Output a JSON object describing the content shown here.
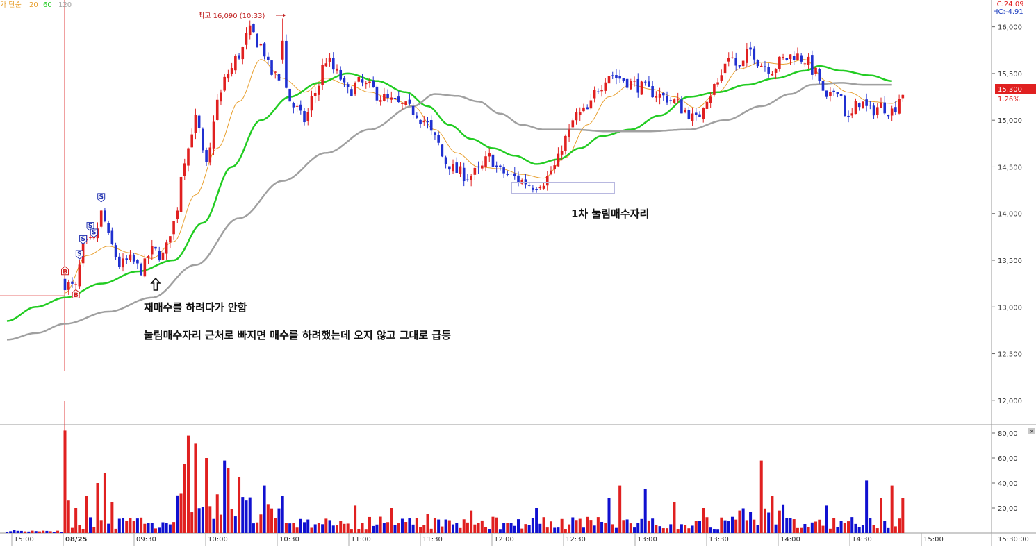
{
  "legend": {
    "prefix": "가 단순",
    "items": [
      {
        "label": "20",
        "color": "#e8a030"
      },
      {
        "label": "60",
        "color": "#22cc22"
      },
      {
        "label": "120",
        "color": "#a0a0a0"
      }
    ]
  },
  "top_right": {
    "lc": "LC:24.09",
    "hc": "HC:-4.91"
  },
  "price_box": {
    "price": "15,300",
    "pct": "1.26%",
    "color": "#e02020"
  },
  "annotations": {
    "high": "최고 16,090 (10:33)",
    "first_pullback": "1차 눌림매수자리",
    "rebuy": "재매수를 하려다가 안함",
    "note": "눌림매수자리 근처로 빠지면 매수를 하려했는데 오지 않고 그대로 급등"
  },
  "chart_data": [
    {
      "type": "candlestick",
      "title": "",
      "ylim": [
        11850,
        16250
      ],
      "y_ticks": [
        "12,000",
        "12,500",
        "13,000",
        "13,500",
        "14,000",
        "14,500",
        "15,000",
        "15,500",
        "16,000"
      ],
      "y_tick_values": [
        12000,
        12500,
        13000,
        13500,
        14000,
        14500,
        15000,
        15500,
        16000
      ],
      "x_ticks": [
        "15:00",
        "08/25",
        "09:30",
        "10:00",
        "10:30",
        "11:00",
        "11:30",
        "12:00",
        "12:30",
        "13:00",
        "13:30",
        "14:00",
        "14:30",
        "15:00",
        "15:30:00"
      ],
      "previous_close": 13120,
      "high": 16090,
      "up_color": "#e02020",
      "down_color": "#2030d0",
      "close_path": [
        [
          0,
          13250
        ],
        [
          3,
          13200
        ],
        [
          5,
          13650
        ],
        [
          8,
          13700
        ],
        [
          10,
          14000
        ],
        [
          13,
          13650
        ],
        [
          15,
          13450
        ],
        [
          18,
          13500
        ],
        [
          21,
          13400
        ],
        [
          24,
          13600
        ],
        [
          27,
          13550
        ],
        [
          30,
          13900
        ],
        [
          33,
          14600
        ],
        [
          36,
          15000
        ],
        [
          39,
          14500
        ],
        [
          42,
          15200
        ],
        [
          45,
          15500
        ],
        [
          48,
          15700
        ],
        [
          51,
          15950
        ],
        [
          54,
          15800
        ],
        [
          57,
          15500
        ],
        [
          60,
          15400
        ],
        [
          63,
          15150
        ],
        [
          66,
          15000
        ],
        [
          69,
          15300
        ],
        [
          72,
          15650
        ],
        [
          75,
          15500
        ],
        [
          78,
          15300
        ],
        [
          81,
          15400
        ],
        [
          84,
          15350
        ],
        [
          87,
          15250
        ],
        [
          90,
          15200
        ],
        [
          93,
          15150
        ],
        [
          96,
          15100
        ],
        [
          99,
          15000
        ],
        [
          102,
          14800
        ],
        [
          105,
          14550
        ],
        [
          108,
          14450
        ],
        [
          111,
          14400
        ],
        [
          114,
          14450
        ],
        [
          117,
          14600
        ],
        [
          120,
          14450
        ],
        [
          123,
          14400
        ],
        [
          126,
          14350
        ],
        [
          129,
          14300
        ],
        [
          132,
          14350
        ],
        [
          135,
          14500
        ],
        [
          138,
          14800
        ],
        [
          141,
          15050
        ],
        [
          144,
          15100
        ],
        [
          147,
          15350
        ],
        [
          150,
          15500
        ],
        [
          153,
          15450
        ],
        [
          156,
          15400
        ],
        [
          159,
          15350
        ],
        [
          162,
          15300
        ],
        [
          165,
          15250
        ],
        [
          168,
          15200
        ],
        [
          171,
          15100
        ],
        [
          174,
          15000
        ],
        [
          177,
          15250
        ],
        [
          180,
          15400
        ],
        [
          183,
          15700
        ],
        [
          186,
          15550
        ],
        [
          189,
          15750
        ],
        [
          192,
          15600
        ],
        [
          195,
          15550
        ],
        [
          198,
          15650
        ],
        [
          201,
          15700
        ],
        [
          204,
          15650
        ],
        [
          207,
          15500
        ],
        [
          210,
          15200
        ],
        [
          213,
          15350
        ],
        [
          216,
          15000
        ],
        [
          219,
          15200
        ],
        [
          222,
          15100
        ],
        [
          225,
          15150
        ],
        [
          228,
          15100
        ],
        [
          231,
          15300
        ]
      ],
      "ma": [
        {
          "period": 20,
          "color": "#e8a030",
          "path": [
            [
              0,
              13150
            ],
            [
              6,
              13550
            ],
            [
              12,
              13650
            ],
            [
              18,
              13580
            ],
            [
              24,
              13520
            ],
            [
              30,
              13700
            ],
            [
              36,
              14200
            ],
            [
              42,
              14700
            ],
            [
              48,
              15200
            ],
            [
              54,
              15650
            ],
            [
              60,
              15450
            ],
            [
              66,
              15300
            ],
            [
              72,
              15450
            ],
            [
              78,
              15380
            ],
            [
              84,
              15300
            ],
            [
              90,
              15230
            ],
            [
              96,
              15150
            ],
            [
              102,
              14900
            ],
            [
              108,
              14650
            ],
            [
              114,
              14500
            ],
            [
              120,
              14480
            ],
            [
              126,
              14420
            ],
            [
              132,
              14380
            ],
            [
              138,
              14600
            ],
            [
              144,
              14950
            ],
            [
              150,
              15250
            ],
            [
              156,
              15380
            ],
            [
              162,
              15330
            ],
            [
              168,
              15250
            ],
            [
              174,
              15130
            ],
            [
              180,
              15300
            ],
            [
              186,
              15550
            ],
            [
              192,
              15620
            ],
            [
              198,
              15600
            ],
            [
              204,
              15650
            ],
            [
              210,
              15420
            ],
            [
              216,
              15300
            ],
            [
              222,
              15200
            ],
            [
              228,
              15180
            ],
            [
              231,
              15230
            ]
          ]
        },
        {
          "period": 60,
          "color": "#22cc22",
          "path": [
            [
              -16,
              12850
            ],
            [
              -8,
              13000
            ],
            [
              0,
              13100
            ],
            [
              10,
              13250
            ],
            [
              20,
              13380
            ],
            [
              30,
              13500
            ],
            [
              38,
              13900
            ],
            [
              46,
              14500
            ],
            [
              54,
              15000
            ],
            [
              62,
              15250
            ],
            [
              70,
              15400
            ],
            [
              78,
              15500
            ],
            [
              86,
              15420
            ],
            [
              94,
              15300
            ],
            [
              100,
              15150
            ],
            [
              106,
              14950
            ],
            [
              112,
              14800
            ],
            [
              118,
              14700
            ],
            [
              124,
              14620
            ],
            [
              130,
              14530
            ],
            [
              136,
              14580
            ],
            [
              142,
              14700
            ],
            [
              148,
              14830
            ],
            [
              156,
              14900
            ],
            [
              164,
              15050
            ],
            [
              172,
              15250
            ],
            [
              180,
              15300
            ],
            [
              188,
              15380
            ],
            [
              196,
              15450
            ],
            [
              204,
              15530
            ],
            [
              208,
              15580
            ],
            [
              214,
              15530
            ],
            [
              222,
              15480
            ],
            [
              228,
              15420
            ]
          ]
        },
        {
          "period": 120,
          "color": "#a0a0a0",
          "path": [
            [
              -16,
              12650
            ],
            [
              -8,
              12720
            ],
            [
              0,
              12820
            ],
            [
              12,
              12950
            ],
            [
              24,
              13100
            ],
            [
              36,
              13450
            ],
            [
              48,
              13950
            ],
            [
              60,
              14350
            ],
            [
              72,
              14650
            ],
            [
              84,
              14900
            ],
            [
              96,
              15150
            ],
            [
              102,
              15280
            ],
            [
              108,
              15260
            ],
            [
              114,
              15200
            ],
            [
              120,
              15070
            ],
            [
              126,
              14950
            ],
            [
              132,
              14900
            ],
            [
              140,
              14900
            ],
            [
              150,
              14880
            ],
            [
              160,
              14880
            ],
            [
              172,
              14900
            ],
            [
              182,
              15000
            ],
            [
              192,
              15150
            ],
            [
              200,
              15280
            ],
            [
              206,
              15380
            ],
            [
              214,
              15400
            ],
            [
              220,
              15380
            ],
            [
              228,
              15380
            ]
          ]
        }
      ],
      "markers": [
        {
          "label": "B",
          "kind": "buy",
          "pos": [
            0,
            13420
          ]
        },
        {
          "label": "B",
          "kind": "buy",
          "pos": [
            3,
            13170
          ]
        },
        {
          "label": "S",
          "kind": "sell",
          "pos": [
            4,
            13530
          ]
        },
        {
          "label": "S",
          "kind": "sell",
          "pos": [
            5,
            13690
          ]
        },
        {
          "label": "S",
          "kind": "sell",
          "pos": [
            7,
            13830
          ]
        },
        {
          "label": "S",
          "kind": "sell",
          "pos": [
            8,
            13760
          ]
        },
        {
          "label": "S",
          "kind": "sell",
          "pos": [
            10,
            14140
          ]
        }
      ]
    },
    {
      "type": "bar",
      "title": "",
      "ylim": [
        0,
        85
      ],
      "y_ticks": [
        "20,00",
        "40,00",
        "60,00",
        "80,00"
      ],
      "y_tick_values": [
        20,
        40,
        60,
        80
      ],
      "spikes": [
        [
          0,
          82
        ],
        [
          1,
          26
        ],
        [
          3,
          20
        ],
        [
          6,
          30
        ],
        [
          9,
          40
        ],
        [
          11,
          48
        ],
        [
          13,
          25
        ],
        [
          18,
          12
        ],
        [
          24,
          8
        ],
        [
          33,
          55
        ],
        [
          34,
          78
        ],
        [
          36,
          72
        ],
        [
          39,
          60
        ],
        [
          44,
          58
        ],
        [
          45,
          52
        ],
        [
          48,
          45
        ],
        [
          55,
          38
        ],
        [
          60,
          30
        ],
        [
          80,
          22
        ],
        [
          90,
          20
        ],
        [
          100,
          15
        ],
        [
          112,
          18
        ],
        [
          130,
          20
        ],
        [
          150,
          28
        ],
        [
          153,
          38
        ],
        [
          160,
          35
        ],
        [
          168,
          25
        ],
        [
          176,
          20
        ],
        [
          186,
          18
        ],
        [
          192,
          58
        ],
        [
          195,
          30
        ],
        [
          210,
          22
        ],
        [
          221,
          42
        ],
        [
          225,
          28
        ],
        [
          228,
          38
        ],
        [
          231,
          28
        ]
      ]
    }
  ]
}
